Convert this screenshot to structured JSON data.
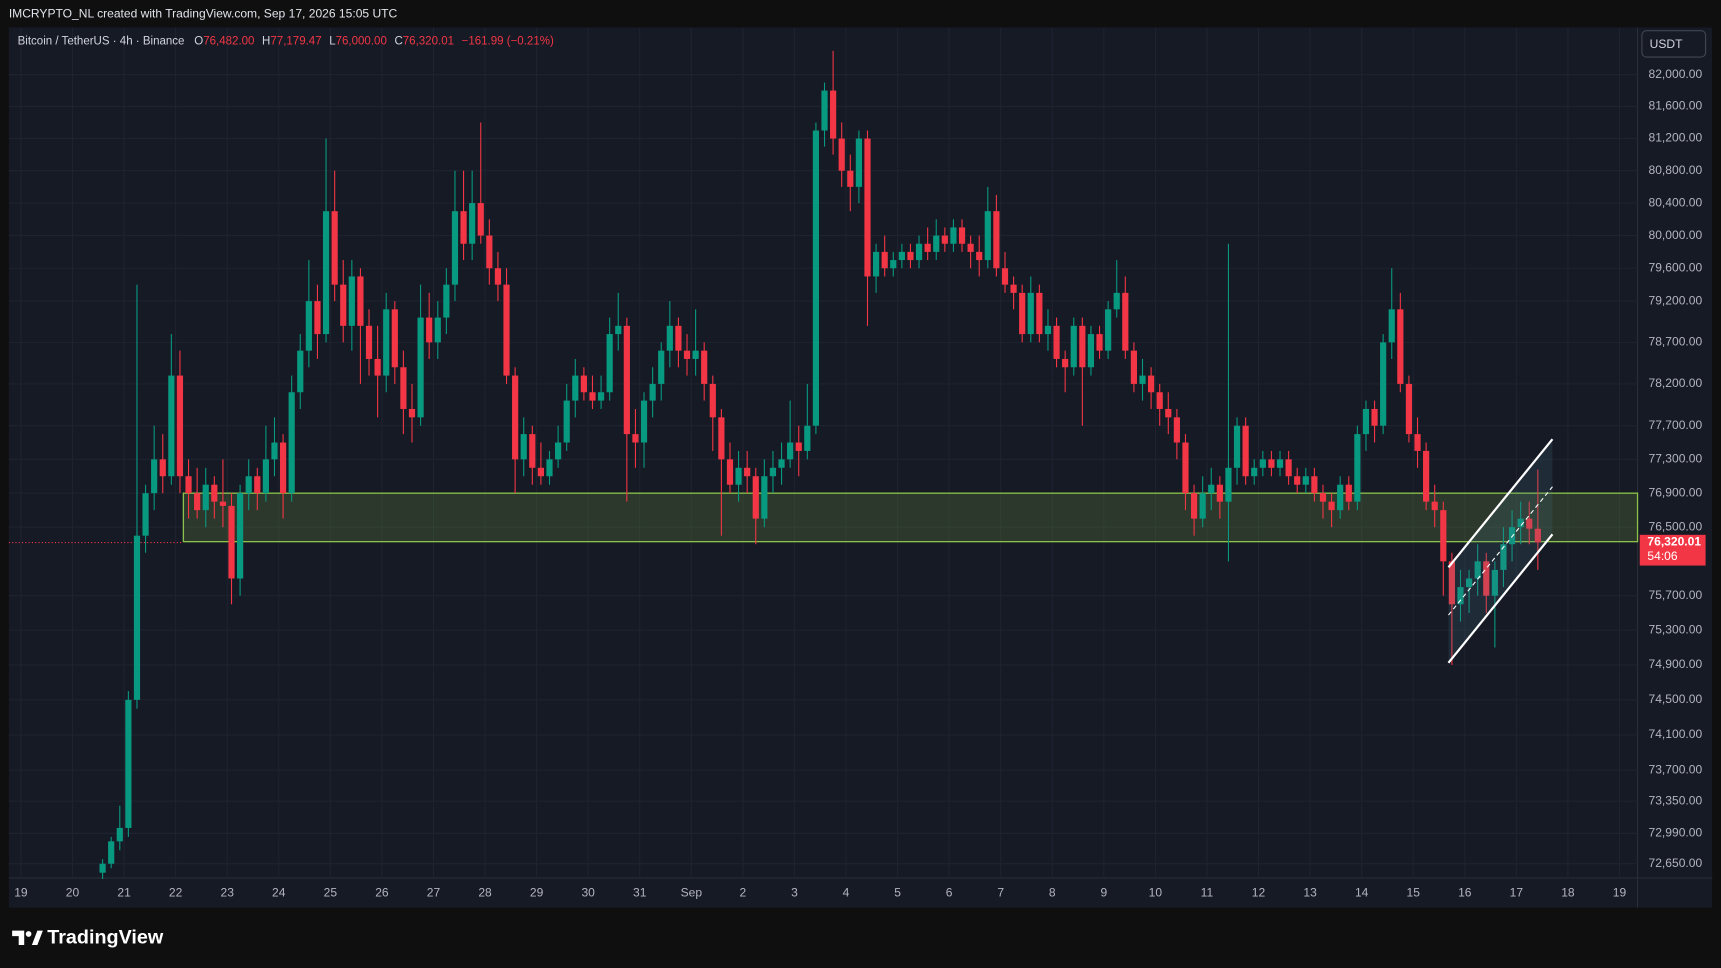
{
  "header": {
    "credit": "IMCRYPTO_NL created with TradingView.com, Sep 17, 2026 15:05 UTC"
  },
  "footer": {
    "brand": "TradingView"
  },
  "chart_data": {
    "type": "candlestick",
    "symbol": "Bitcoin / TetherUS · 4h · Binance",
    "ohlc_legend": [
      {
        "label": "O",
        "value": "76,482.00"
      },
      {
        "label": "H",
        "value": "77,179.47"
      },
      {
        "label": "L",
        "value": "76,000.00"
      },
      {
        "label": "C",
        "value": "76,320.01"
      }
    ],
    "change": "−161.99 (−0.21%)",
    "currency": "USDT",
    "last_price_label": "76,320.01",
    "countdown": "54:06",
    "up_color": "#089981",
    "down_color": "#f23645",
    "log_scale": true,
    "grid": true,
    "xlim": [
      -10.41,
      179.1
    ],
    "ylim": [
      72491,
      82596
    ],
    "xticks": [
      {
        "value": -9,
        "label": "19"
      },
      {
        "value": -3,
        "label": "20"
      },
      {
        "value": 3,
        "label": "21"
      },
      {
        "value": 9,
        "label": "22"
      },
      {
        "value": 15,
        "label": "23"
      },
      {
        "value": 21,
        "label": "24"
      },
      {
        "value": 27,
        "label": "25"
      },
      {
        "value": 33,
        "label": "26"
      },
      {
        "value": 39,
        "label": "27"
      },
      {
        "value": 45,
        "label": "28"
      },
      {
        "value": 51,
        "label": "29"
      },
      {
        "value": 57,
        "label": "30"
      },
      {
        "value": 63,
        "label": "31"
      },
      {
        "value": 69,
        "label": "Sep"
      },
      {
        "value": 75,
        "label": "2"
      },
      {
        "value": 81,
        "label": "3"
      },
      {
        "value": 87,
        "label": "4"
      },
      {
        "value": 93,
        "label": "5"
      },
      {
        "value": 99,
        "label": "6"
      },
      {
        "value": 105,
        "label": "7"
      },
      {
        "value": 111,
        "label": "8"
      },
      {
        "value": 117,
        "label": "9"
      },
      {
        "value": 123,
        "label": "10"
      },
      {
        "value": 129,
        "label": "11"
      },
      {
        "value": 135,
        "label": "12"
      },
      {
        "value": 141,
        "label": "13"
      },
      {
        "value": 147,
        "label": "14"
      },
      {
        "value": 153,
        "label": "15"
      },
      {
        "value": 159,
        "label": "16"
      },
      {
        "value": 165,
        "label": "17"
      },
      {
        "value": 171,
        "label": "18"
      },
      {
        "value": 177,
        "label": "19"
      }
    ],
    "yticks": [
      {
        "value": 82000,
        "label": "82,000.00"
      },
      {
        "value": 81600,
        "label": "81,600.00"
      },
      {
        "value": 81200,
        "label": "81,200.00"
      },
      {
        "value": 80800,
        "label": "80,800.00"
      },
      {
        "value": 80400,
        "label": "80,400.00"
      },
      {
        "value": 80000,
        "label": "80,000.00"
      },
      {
        "value": 79600,
        "label": "79,600.00"
      },
      {
        "value": 79200,
        "label": "79,200.00"
      },
      {
        "value": 78700,
        "label": "78,700.00"
      },
      {
        "value": 78200,
        "label": "78,200.00"
      },
      {
        "value": 77700,
        "label": "77,700.00"
      },
      {
        "value": 77300,
        "label": "77,300.00"
      },
      {
        "value": 76900,
        "label": "76,900.00"
      },
      {
        "value": 76500,
        "label": "76,500.00"
      },
      {
        "value": 75700,
        "label": "75,700.00"
      },
      {
        "value": 75300,
        "label": "75,300.00"
      },
      {
        "value": 74900,
        "label": "74,900.00"
      },
      {
        "value": 74500,
        "label": "74,500.00"
      },
      {
        "value": 74100,
        "label": "74,100.00"
      },
      {
        "value": 73700,
        "label": "73,700.00"
      },
      {
        "value": 73350,
        "label": "73,350.00"
      },
      {
        "value": 72990,
        "label": "72,990.00"
      },
      {
        "value": 72650,
        "label": "72,650.00"
      }
    ],
    "support_zone": {
      "start": 9.9,
      "low": 76330,
      "high": 76900,
      "color": "#8bc34a"
    },
    "channel": {
      "x": [
        157.1,
        169.2
      ],
      "lower": [
        74924,
        76416
      ],
      "upper": [
        76030,
        77540
      ],
      "color": "#ffffff"
    },
    "candles": [
      [
        72550,
        72700,
        72480,
        72650
      ],
      [
        72650,
        72950,
        72600,
        72900
      ],
      [
        72900,
        73300,
        72800,
        73050
      ],
      [
        73050,
        74600,
        72950,
        74500
      ],
      [
        74500,
        79400,
        74400,
        76400
      ],
      [
        76400,
        77000,
        76200,
        76900
      ],
      [
        76900,
        77700,
        76700,
        77300
      ],
      [
        77300,
        77600,
        76900,
        77100
      ],
      [
        77100,
        78800,
        77000,
        78300
      ],
      [
        78300,
        78600,
        76900,
        77100
      ],
      [
        77100,
        77300,
        76600,
        76900
      ],
      [
        76900,
        77200,
        76600,
        76700
      ],
      [
        76700,
        77200,
        76500,
        77000
      ],
      [
        77000,
        77100,
        76600,
        76800
      ],
      [
        76800,
        77300,
        76500,
        76750
      ],
      [
        76750,
        76900,
        75600,
        75900
      ],
      [
        75900,
        77000,
        75700,
        76900
      ],
      [
        76900,
        77300,
        76700,
        77100
      ],
      [
        77100,
        77200,
        76700,
        76900
      ],
      [
        76900,
        77700,
        76800,
        77300
      ],
      [
        77300,
        77800,
        77100,
        77500
      ],
      [
        77500,
        77600,
        76600,
        76900
      ],
      [
        76900,
        78300,
        76800,
        78100
      ],
      [
        78100,
        78800,
        77900,
        78600
      ],
      [
        78600,
        79700,
        78400,
        79200
      ],
      [
        79200,
        79400,
        78500,
        78800
      ],
      [
        78800,
        81200,
        78700,
        80300
      ],
      [
        80300,
        80800,
        79200,
        79400
      ],
      [
        79400,
        79700,
        78700,
        78900
      ],
      [
        78900,
        79700,
        78600,
        79500
      ],
      [
        79500,
        79600,
        78200,
        78900
      ],
      [
        78900,
        79100,
        78300,
        78500
      ],
      [
        78500,
        78900,
        77800,
        78300
      ],
      [
        78300,
        79300,
        78100,
        79100
      ],
      [
        79100,
        79200,
        78200,
        78400
      ],
      [
        78400,
        78600,
        77600,
        77900
      ],
      [
        77900,
        78200,
        77500,
        77800
      ],
      [
        77800,
        79400,
        77700,
        79000
      ],
      [
        79000,
        79300,
        78500,
        78700
      ],
      [
        78700,
        79200,
        78500,
        79000
      ],
      [
        79000,
        79600,
        78800,
        79400
      ],
      [
        79400,
        80800,
        79200,
        80300
      ],
      [
        80300,
        80800,
        79700,
        79900
      ],
      [
        79900,
        80800,
        79700,
        80400
      ],
      [
        80400,
        81400,
        79900,
        80000
      ],
      [
        80000,
        80200,
        79400,
        79600
      ],
      [
        79600,
        79800,
        79200,
        79400
      ],
      [
        79400,
        79600,
        78200,
        78300
      ],
      [
        78300,
        78400,
        76900,
        77300
      ],
      [
        77300,
        77800,
        77100,
        77600
      ],
      [
        77600,
        77700,
        77000,
        77200
      ],
      [
        77200,
        77500,
        77000,
        77100
      ],
      [
        77100,
        77400,
        77000,
        77300
      ],
      [
        77300,
        77700,
        77200,
        77500
      ],
      [
        77500,
        78200,
        77400,
        78000
      ],
      [
        78000,
        78500,
        77800,
        78300
      ],
      [
        78300,
        78400,
        78000,
        78100
      ],
      [
        78100,
        78300,
        77900,
        78000
      ],
      [
        78000,
        78300,
        77900,
        78100
      ],
      [
        78100,
        79000,
        78000,
        78800
      ],
      [
        78800,
        79300,
        78600,
        78900
      ],
      [
        78900,
        79000,
        76800,
        77600
      ],
      [
        77600,
        77900,
        77200,
        77500
      ],
      [
        77500,
        78100,
        77200,
        78000
      ],
      [
        78000,
        78400,
        77800,
        78200
      ],
      [
        78200,
        78700,
        78000,
        78600
      ],
      [
        78600,
        79200,
        78400,
        78900
      ],
      [
        78900,
        79000,
        78400,
        78600
      ],
      [
        78600,
        78800,
        78300,
        78500
      ],
      [
        78500,
        79100,
        78300,
        78600
      ],
      [
        78600,
        78700,
        78000,
        78200
      ],
      [
        78200,
        78300,
        77400,
        77800
      ],
      [
        77800,
        77900,
        76400,
        77300
      ],
      [
        77300,
        77500,
        76900,
        77000
      ],
      [
        77000,
        77400,
        76800,
        77200
      ],
      [
        77200,
        77400,
        76900,
        77100
      ],
      [
        77100,
        77200,
        76300,
        76600
      ],
      [
        76600,
        77300,
        76500,
        77100
      ],
      [
        77100,
        77400,
        76900,
        77200
      ],
      [
        77200,
        77500,
        77000,
        77300
      ],
      [
        77300,
        78000,
        77200,
        77500
      ],
      [
        77500,
        77700,
        77100,
        77400
      ],
      [
        77400,
        78200,
        77300,
        77700
      ],
      [
        77700,
        81400,
        77600,
        81300
      ],
      [
        81300,
        81900,
        81100,
        81800
      ],
      [
        81800,
        82300,
        81000,
        81200
      ],
      [
        81200,
        81400,
        80600,
        80800
      ],
      [
        80800,
        81000,
        80300,
        80600
      ],
      [
        80600,
        81300,
        80400,
        81200
      ],
      [
        81200,
        81300,
        78900,
        79500
      ],
      [
        79500,
        79900,
        79300,
        79800
      ],
      [
        79800,
        80000,
        79500,
        79600
      ],
      [
        79600,
        79800,
        79500,
        79700
      ],
      [
        79700,
        79900,
        79600,
        79800
      ],
      [
        79800,
        79900,
        79600,
        79700
      ],
      [
        79700,
        80000,
        79600,
        79900
      ],
      [
        79900,
        80100,
        79700,
        79800
      ],
      [
        79800,
        80200,
        79700,
        80000
      ],
      [
        80000,
        80100,
        79800,
        79900
      ],
      [
        79900,
        80200,
        79800,
        80100
      ],
      [
        80100,
        80200,
        79800,
        79900
      ],
      [
        79900,
        80000,
        79600,
        79800
      ],
      [
        79800,
        80000,
        79500,
        79700
      ],
      [
        79700,
        80600,
        79600,
        80300
      ],
      [
        80300,
        80500,
        79500,
        79600
      ],
      [
        79600,
        79800,
        79300,
        79400
      ],
      [
        79400,
        79500,
        79100,
        79300
      ],
      [
        79300,
        79400,
        78700,
        78800
      ],
      [
        78800,
        79500,
        78700,
        79300
      ],
      [
        79300,
        79400,
        78700,
        78800
      ],
      [
        78800,
        79100,
        78600,
        78900
      ],
      [
        78900,
        79000,
        78400,
        78500
      ],
      [
        78500,
        78600,
        78100,
        78400
      ],
      [
        78400,
        79000,
        78300,
        78900
      ],
      [
        78900,
        79000,
        77700,
        78400
      ],
      [
        78400,
        78900,
        78300,
        78800
      ],
      [
        78800,
        78900,
        78500,
        78600
      ],
      [
        78600,
        79200,
        78500,
        79100
      ],
      [
        79100,
        79700,
        79000,
        79300
      ],
      [
        79300,
        79500,
        78500,
        78600
      ],
      [
        78600,
        78700,
        78100,
        78200
      ],
      [
        78200,
        78500,
        78000,
        78300
      ],
      [
        78300,
        78400,
        77900,
        78100
      ],
      [
        78100,
        78200,
        77700,
        77900
      ],
      [
        77900,
        78100,
        77600,
        77800
      ],
      [
        77800,
        77900,
        77300,
        77500
      ],
      [
        77500,
        77600,
        76700,
        76900
      ],
      [
        76900,
        77000,
        76400,
        76600
      ],
      [
        76600,
        77100,
        76500,
        76900
      ],
      [
        76900,
        77200,
        76700,
        77000
      ],
      [
        77000,
        77100,
        76600,
        76800
      ],
      [
        76800,
        79900,
        76100,
        77200
      ],
      [
        77200,
        77800,
        77000,
        77700
      ],
      [
        77700,
        77800,
        77000,
        77100
      ],
      [
        77100,
        77300,
        77000,
        77200
      ],
      [
        77200,
        77400,
        77100,
        77300
      ],
      [
        77300,
        77400,
        77100,
        77200
      ],
      [
        77200,
        77400,
        77100,
        77300
      ],
      [
        77300,
        77400,
        77000,
        77100
      ],
      [
        77100,
        77200,
        76900,
        77000
      ],
      [
        77000,
        77200,
        76900,
        77100
      ],
      [
        77100,
        77200,
        76800,
        76900
      ],
      [
        76900,
        77000,
        76600,
        76800
      ],
      [
        76800,
        76900,
        76500,
        76700
      ],
      [
        76700,
        77100,
        76600,
        77000
      ],
      [
        77000,
        77100,
        76700,
        76800
      ],
      [
        76800,
        77700,
        76700,
        77600
      ],
      [
        77600,
        78000,
        77400,
        77900
      ],
      [
        77900,
        78000,
        77500,
        77700
      ],
      [
        77700,
        78800,
        77600,
        78700
      ],
      [
        78700,
        79600,
        78500,
        79100
      ],
      [
        79100,
        79300,
        78100,
        78200
      ],
      [
        78200,
        78300,
        77500,
        77600
      ],
      [
        77600,
        77800,
        77200,
        77400
      ],
      [
        77400,
        77500,
        76700,
        76800
      ],
      [
        76800,
        77000,
        76500,
        76700
      ],
      [
        76700,
        76800,
        75700,
        76100
      ],
      [
        76100,
        76200,
        74900,
        75600
      ],
      [
        75600,
        76000,
        75400,
        75800
      ],
      [
        75800,
        76000,
        75500,
        75900
      ],
      [
        75900,
        76300,
        75700,
        76100
      ],
      [
        76100,
        76200,
        75500,
        75700
      ],
      [
        75700,
        76100,
        75100,
        76000
      ],
      [
        76000,
        76500,
        75800,
        76300
      ],
      [
        76300,
        76700,
        76100,
        76500
      ],
      [
        76500,
        76800,
        76300,
        76600
      ],
      [
        76600,
        76800,
        76300,
        76482
      ],
      [
        76482,
        77179.47,
        76000,
        76320.01
      ]
    ]
  }
}
